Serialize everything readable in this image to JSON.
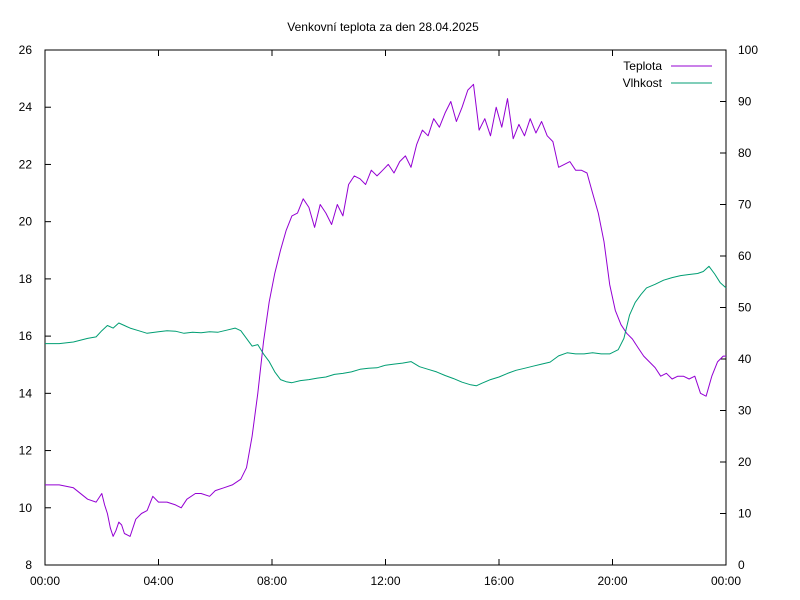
{
  "chart_data": {
    "type": "line",
    "title": "Venkovní teplota za den 28.04.2025",
    "xlabel": "",
    "ylabel": "",
    "y2label": "",
    "x_range": [
      "00:00",
      "24:00"
    ],
    "x_ticks": [
      {
        "hour": 0,
        "label": "00:00"
      },
      {
        "hour": 4,
        "label": "04:00"
      },
      {
        "hour": 8,
        "label": "08:00"
      },
      {
        "hour": 12,
        "label": "12:00"
      },
      {
        "hour": 16,
        "label": "16:00"
      },
      {
        "hour": 20,
        "label": "20:00"
      },
      {
        "hour": 24,
        "label": "00:00"
      }
    ],
    "y_left": {
      "min": 8,
      "max": 26,
      "ticks": [
        8,
        10,
        12,
        14,
        16,
        18,
        20,
        22,
        24,
        26
      ]
    },
    "y_right": {
      "min": 0,
      "max": 100,
      "ticks": [
        0,
        10,
        20,
        30,
        40,
        50,
        60,
        70,
        80,
        90,
        100
      ]
    },
    "grid": false,
    "legend_position": "top-right",
    "series": [
      {
        "name": "Teplota",
        "axis": "left",
        "color": "#9400d3",
        "x": [
          0,
          0.5,
          1,
          1.5,
          1.8,
          2,
          2.1,
          2.2,
          2.3,
          2.4,
          2.5,
          2.6,
          2.7,
          2.8,
          3,
          3.2,
          3.4,
          3.6,
          3.8,
          4,
          4.3,
          4.6,
          4.8,
          5,
          5.3,
          5.5,
          5.8,
          6,
          6.3,
          6.6,
          6.9,
          7.1,
          7.3,
          7.5,
          7.7,
          7.9,
          8.1,
          8.3,
          8.5,
          8.7,
          8.9,
          9.1,
          9.3,
          9.5,
          9.7,
          9.9,
          10.1,
          10.3,
          10.5,
          10.7,
          10.9,
          11.1,
          11.3,
          11.5,
          11.7,
          11.9,
          12.1,
          12.3,
          12.5,
          12.7,
          12.9,
          13.1,
          13.3,
          13.5,
          13.7,
          13.9,
          14.1,
          14.3,
          14.5,
          14.7,
          14.9,
          15.1,
          15.3,
          15.5,
          15.7,
          15.9,
          16.1,
          16.3,
          16.5,
          16.7,
          16.9,
          17.1,
          17.3,
          17.5,
          17.7,
          17.9,
          18.1,
          18.3,
          18.5,
          18.7,
          18.9,
          19.1,
          19.3,
          19.5,
          19.7,
          19.9,
          20.1,
          20.3,
          20.5,
          20.7,
          20.9,
          21.1,
          21.3,
          21.5,
          21.7,
          21.9,
          22.1,
          22.3,
          22.5,
          22.7,
          22.9,
          23.1,
          23.3,
          23.5,
          23.7,
          23.9,
          24
        ],
        "values": [
          10.8,
          10.8,
          10.7,
          10.3,
          10.2,
          10.5,
          10.1,
          9.8,
          9.3,
          9.0,
          9.2,
          9.5,
          9.4,
          9.1,
          9.0,
          9.6,
          9.8,
          9.9,
          10.4,
          10.2,
          10.2,
          10.1,
          10.0,
          10.3,
          10.5,
          10.5,
          10.4,
          10.6,
          10.7,
          10.8,
          11.0,
          11.4,
          12.5,
          14.0,
          15.8,
          17.2,
          18.2,
          19.0,
          19.7,
          20.2,
          20.3,
          20.8,
          20.5,
          19.8,
          20.6,
          20.3,
          19.9,
          20.6,
          20.2,
          21.3,
          21.6,
          21.5,
          21.3,
          21.8,
          21.6,
          21.8,
          22.0,
          21.7,
          22.1,
          22.3,
          21.9,
          22.7,
          23.2,
          23.0,
          23.6,
          23.3,
          23.8,
          24.2,
          23.5,
          24.0,
          24.6,
          24.8,
          23.2,
          23.6,
          23.0,
          24.0,
          23.3,
          24.3,
          22.9,
          23.4,
          23.0,
          23.6,
          23.1,
          23.5,
          23.0,
          22.8,
          21.9,
          22.0,
          22.1,
          21.8,
          21.8,
          21.7,
          21.0,
          20.3,
          19.3,
          17.8,
          16.9,
          16.4,
          16.1,
          15.9,
          15.6,
          15.3,
          15.1,
          14.9,
          14.6,
          14.7,
          14.5,
          14.6,
          14.6,
          14.5,
          14.6,
          14.0,
          13.9,
          14.6,
          15.1,
          15.3,
          15.3
        ]
      },
      {
        "name": "Vlhkost",
        "axis": "right",
        "color": "#009e73",
        "x": [
          0,
          0.5,
          1,
          1.5,
          1.8,
          2,
          2.2,
          2.4,
          2.6,
          2.8,
          3,
          3.3,
          3.6,
          4,
          4.3,
          4.6,
          4.9,
          5.2,
          5.5,
          5.8,
          6.1,
          6.4,
          6.7,
          6.9,
          7.1,
          7.3,
          7.5,
          7.7,
          7.9,
          8.1,
          8.3,
          8.5,
          8.7,
          9.0,
          9.3,
          9.6,
          9.9,
          10.2,
          10.5,
          10.8,
          11.1,
          11.4,
          11.7,
          12.0,
          12.3,
          12.6,
          12.9,
          13.2,
          13.5,
          13.8,
          14.1,
          14.4,
          14.7,
          15.0,
          15.2,
          15.4,
          15.7,
          16.0,
          16.3,
          16.6,
          16.9,
          17.2,
          17.5,
          17.8,
          18.1,
          18.4,
          18.7,
          19.0,
          19.3,
          19.6,
          19.9,
          20.2,
          20.4,
          20.6,
          20.8,
          21.0,
          21.2,
          21.5,
          21.8,
          22.1,
          22.4,
          22.7,
          23.0,
          23.2,
          23.4,
          23.6,
          23.8,
          24
        ],
        "values": [
          43,
          43,
          43.3,
          44,
          44.3,
          45.5,
          46.5,
          46.0,
          47.0,
          46.5,
          46.0,
          45.5,
          45.0,
          45.3,
          45.5,
          45.4,
          45.0,
          45.2,
          45.1,
          45.3,
          45.2,
          45.6,
          46.0,
          45.5,
          44.0,
          42.5,
          42.8,
          41.0,
          39.5,
          37.5,
          36.0,
          35.6,
          35.4,
          35.8,
          36.0,
          36.3,
          36.5,
          37.0,
          37.2,
          37.5,
          38.0,
          38.2,
          38.3,
          38.8,
          39.0,
          39.2,
          39.5,
          38.5,
          38.0,
          37.5,
          36.8,
          36.2,
          35.5,
          35.0,
          34.8,
          35.3,
          36.0,
          36.5,
          37.2,
          37.8,
          38.2,
          38.6,
          39.0,
          39.4,
          40.6,
          41.2,
          41.0,
          41.0,
          41.2,
          41.0,
          41.0,
          41.8,
          44.0,
          48.5,
          51.0,
          52.5,
          53.8,
          54.5,
          55.3,
          55.8,
          56.2,
          56.4,
          56.6,
          57.0,
          58.0,
          56.5,
          54.8,
          53.8
        ]
      }
    ]
  }
}
